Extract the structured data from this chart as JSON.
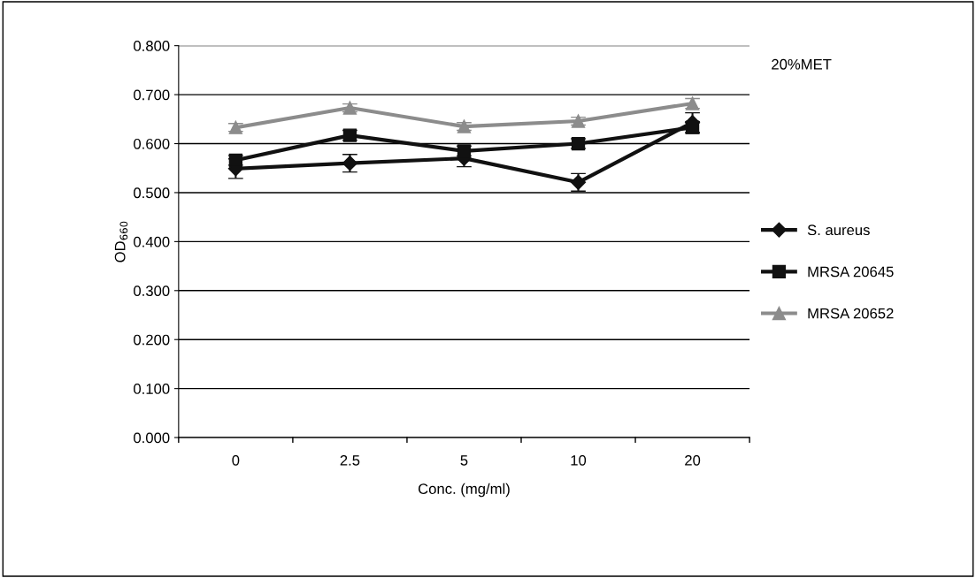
{
  "chart_data": {
    "type": "line",
    "xlabel": "Conc. (mg/ml)",
    "ylabel": "OD$_{660}$",
    "categories": [
      "0",
      "2.5",
      "5",
      "10",
      "20"
    ],
    "ylim": [
      0,
      0.8
    ],
    "yticks": [
      {
        "value": 0,
        "label": "0.000"
      },
      {
        "value": 0.1,
        "label": "0.100"
      },
      {
        "value": 0.2,
        "label": "0.200"
      },
      {
        "value": 0.3,
        "label": "0.300"
      },
      {
        "value": 0.4,
        "label": "0.400"
      },
      {
        "value": 0.5,
        "label": "0.500"
      },
      {
        "value": 0.6,
        "label": "0.600"
      },
      {
        "value": 0.7,
        "label": "0.700"
      },
      {
        "value": 0.8,
        "label": "0.800"
      }
    ],
    "grid": "y",
    "legend": "right",
    "line_style": "solid",
    "annotations": [
      "20%MET"
    ],
    "series": [
      {
        "name": "S. aureus",
        "color": "#111111",
        "marker": "diamond",
        "values": [
          0.549,
          0.56,
          0.57,
          0.521,
          0.643
        ],
        "errors": [
          0.02,
          0.018,
          0.017,
          0.018,
          0.02
        ]
      },
      {
        "name": "MRSA 20645",
        "color": "#111111",
        "marker": "square",
        "values": [
          0.566,
          0.617,
          0.585,
          0.6,
          0.633
        ],
        "errors": [
          0.01,
          0.01,
          0.01,
          0.01,
          0.012
        ]
      },
      {
        "name": "MRSA 20652",
        "color": "#8c8c8c",
        "marker": "triangle",
        "values": [
          0.633,
          0.673,
          0.635,
          0.646,
          0.682
        ],
        "errors": [
          0.008,
          0.008,
          0.008,
          0.008,
          0.01
        ]
      }
    ]
  }
}
